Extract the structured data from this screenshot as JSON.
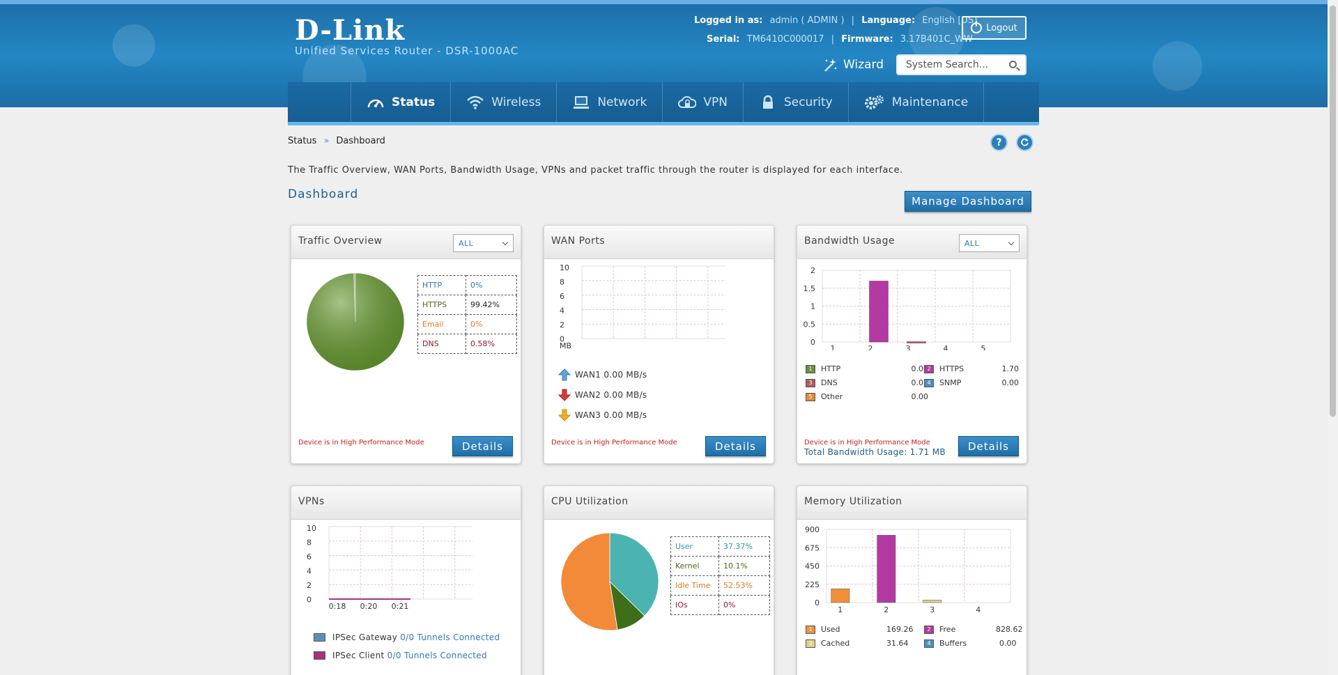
{
  "header": {
    "brand": "D-Link",
    "subtitle": "Unified Services Router - DSR-1000AC",
    "logged_in_label": "Logged in as:",
    "logged_in_value": "admin ( ADMIN )",
    "language_label": "Language:",
    "language_value": "English [US]",
    "serial_label": "Serial:",
    "serial_value": "TM6410C000017",
    "firmware_label": "Firmware:",
    "firmware_value": "3.17B401C_WW",
    "logout_label": "Logout",
    "wizard_label": "Wizard",
    "search_placeholder": "System Search..."
  },
  "nav": {
    "items": [
      {
        "label": "Status",
        "icon": "speedometer-icon"
      },
      {
        "label": "Wireless",
        "icon": "wifi-icon"
      },
      {
        "label": "Network",
        "icon": "monitor-icon"
      },
      {
        "label": "VPN",
        "icon": "cloud-lock-icon"
      },
      {
        "label": "Security",
        "icon": "lock-icon"
      },
      {
        "label": "Maintenance",
        "icon": "gears-icon"
      }
    ],
    "active": "Status"
  },
  "breadcrumb": {
    "section": "Status",
    "separator": "»",
    "page": "Dashboard"
  },
  "description": "The Traffic Overview, WAN Ports, Bandwidth Usage, VPNs and packet traffic through the router is displayed for each interface.",
  "page_title": "Dashboard",
  "manage_button": "Manage Dashboard",
  "common": {
    "details_label": "Details",
    "hpm_notice": "Device is in High Performance Mode"
  },
  "traffic": {
    "title": "Traffic Overview",
    "select_value": "ALL",
    "rows": [
      {
        "name": "HTTP",
        "value": "0%",
        "color": "#2e7ab5"
      },
      {
        "name": "HTTPS",
        "value": "99.42%",
        "color": "#4a6a1a"
      },
      {
        "name": "Email",
        "value": "0%",
        "color": "#e07a20"
      },
      {
        "name": "DNS",
        "value": "0.58%",
        "color": "#8b1b2e"
      }
    ]
  },
  "wan": {
    "title": "WAN Ports",
    "unit": "MB",
    "y_ticks": [
      "10",
      "8",
      "6",
      "4",
      "2",
      "0"
    ],
    "legend": [
      {
        "label": "WAN1 0.00 MB/s",
        "color": "#5fa3d8"
      },
      {
        "label": "WAN2 0.00 MB/s",
        "color": "#d63a3a"
      },
      {
        "label": "WAN3 0.00 MB/s",
        "color": "#f0b020"
      }
    ]
  },
  "bandwidth": {
    "title": "Bandwidth Usage",
    "select_value": "ALL",
    "y_ticks": [
      "2",
      "1.5",
      "1",
      "0.5",
      "0"
    ],
    "x_ticks": [
      "1",
      "2",
      "3",
      "4",
      "5"
    ],
    "legend": [
      {
        "num": "1",
        "name": "HTTP",
        "value": "0.00",
        "color": "#6a8f3a"
      },
      {
        "num": "2",
        "name": "HTTPS",
        "value": "1.70",
        "color": "#b43aa3"
      },
      {
        "num": "3",
        "name": "DNS",
        "value": "0.01",
        "color": "#b05a5a"
      },
      {
        "num": "4",
        "name": "SNMP",
        "value": "0.00",
        "color": "#4a8fc0"
      },
      {
        "num": "5",
        "name": "Other",
        "value": "0.00",
        "color": "#e08a3a"
      }
    ],
    "total": "Total Bandwidth Usage: 1.71 MB"
  },
  "vpns": {
    "title": "VPNs",
    "y_ticks": [
      "10",
      "8",
      "6",
      "4",
      "2",
      "0"
    ],
    "x_ticks": [
      "0:18",
      "0:20",
      "0:21"
    ],
    "legend": [
      {
        "label": "IPSec Gateway",
        "value": "0/0 Tunnels Connected",
        "color": "#5b8fb8"
      },
      {
        "label": "IPSec Client",
        "value": "0/0 Tunnels Connected",
        "color": "#a6337a"
      }
    ]
  },
  "cpu": {
    "title": "CPU Utilization",
    "rows": [
      {
        "name": "User",
        "value": "37.37%",
        "color": "#2e9a9a"
      },
      {
        "name": "Kernel",
        "value": "10.1%",
        "color": "#4a6a1a"
      },
      {
        "name": "Idle Time",
        "value": "52.53%",
        "color": "#e07a20"
      },
      {
        "name": "IOs",
        "value": "0%",
        "color": "#8b1b2e"
      }
    ]
  },
  "memory": {
    "title": "Memory Utilization",
    "y_ticks": [
      "900",
      "675",
      "450",
      "225",
      "0"
    ],
    "x_ticks": [
      "1",
      "2",
      "3",
      "4"
    ],
    "legend": [
      {
        "num": "1",
        "name": "Used",
        "value": "169.26",
        "color": "#f0903a"
      },
      {
        "num": "2",
        "name": "Free",
        "value": "828.62",
        "color": "#b43aa3"
      },
      {
        "num": "3",
        "name": "Cached",
        "value": "31.64",
        "color": "#e0d08a"
      },
      {
        "num": "4",
        "name": "Buffers",
        "value": "0.00",
        "color": "#4a8fc0"
      }
    ]
  },
  "chart_data": [
    {
      "type": "pie",
      "name": "Traffic Overview",
      "categories": [
        "HTTP",
        "HTTPS",
        "Email",
        "DNS"
      ],
      "values": [
        0,
        99.42,
        0,
        0.58
      ],
      "colors": [
        "#2e7ab5",
        "#5e8c2e",
        "#e07a20",
        "#d8d8d8"
      ]
    },
    {
      "type": "line",
      "name": "WAN Ports",
      "ylim": [
        0,
        10
      ],
      "ylabel": "MB",
      "series": [
        {
          "name": "WAN1",
          "values": []
        },
        {
          "name": "WAN2",
          "values": []
        },
        {
          "name": "WAN3",
          "values": []
        }
      ]
    },
    {
      "type": "bar",
      "name": "Bandwidth Usage",
      "categories": [
        "1",
        "2",
        "3",
        "4",
        "5"
      ],
      "values": [
        0.0,
        1.7,
        0.01,
        0.0,
        0.0
      ],
      "ylim": [
        0,
        2
      ],
      "colors": [
        "#6a8f3a",
        "#b43aa3",
        "#b05a5a",
        "#4a8fc0",
        "#e08a3a"
      ]
    },
    {
      "type": "line",
      "name": "VPNs",
      "x": [
        "0:18",
        "0:20",
        "0:21"
      ],
      "ylim": [
        0,
        10
      ],
      "series": [
        {
          "name": "IPSec Gateway",
          "values": [
            0,
            0,
            0
          ]
        },
        {
          "name": "IPSec Client",
          "values": [
            0,
            0,
            0
          ]
        }
      ]
    },
    {
      "type": "pie",
      "name": "CPU Utilization",
      "categories": [
        "User",
        "Kernel",
        "Idle Time",
        "IOs"
      ],
      "values": [
        37.37,
        10.1,
        52.53,
        0
      ],
      "colors": [
        "#4bb3b0",
        "#3f6e1a",
        "#f28a3a",
        "#8b1b2e"
      ]
    },
    {
      "type": "bar",
      "name": "Memory Utilization",
      "categories": [
        "1",
        "2",
        "3",
        "4"
      ],
      "values": [
        169.26,
        828.62,
        31.64,
        0.0
      ],
      "ylim": [
        0,
        900
      ],
      "colors": [
        "#f0903a",
        "#b43aa3",
        "#e0d08a",
        "#4a8fc0"
      ]
    }
  ]
}
